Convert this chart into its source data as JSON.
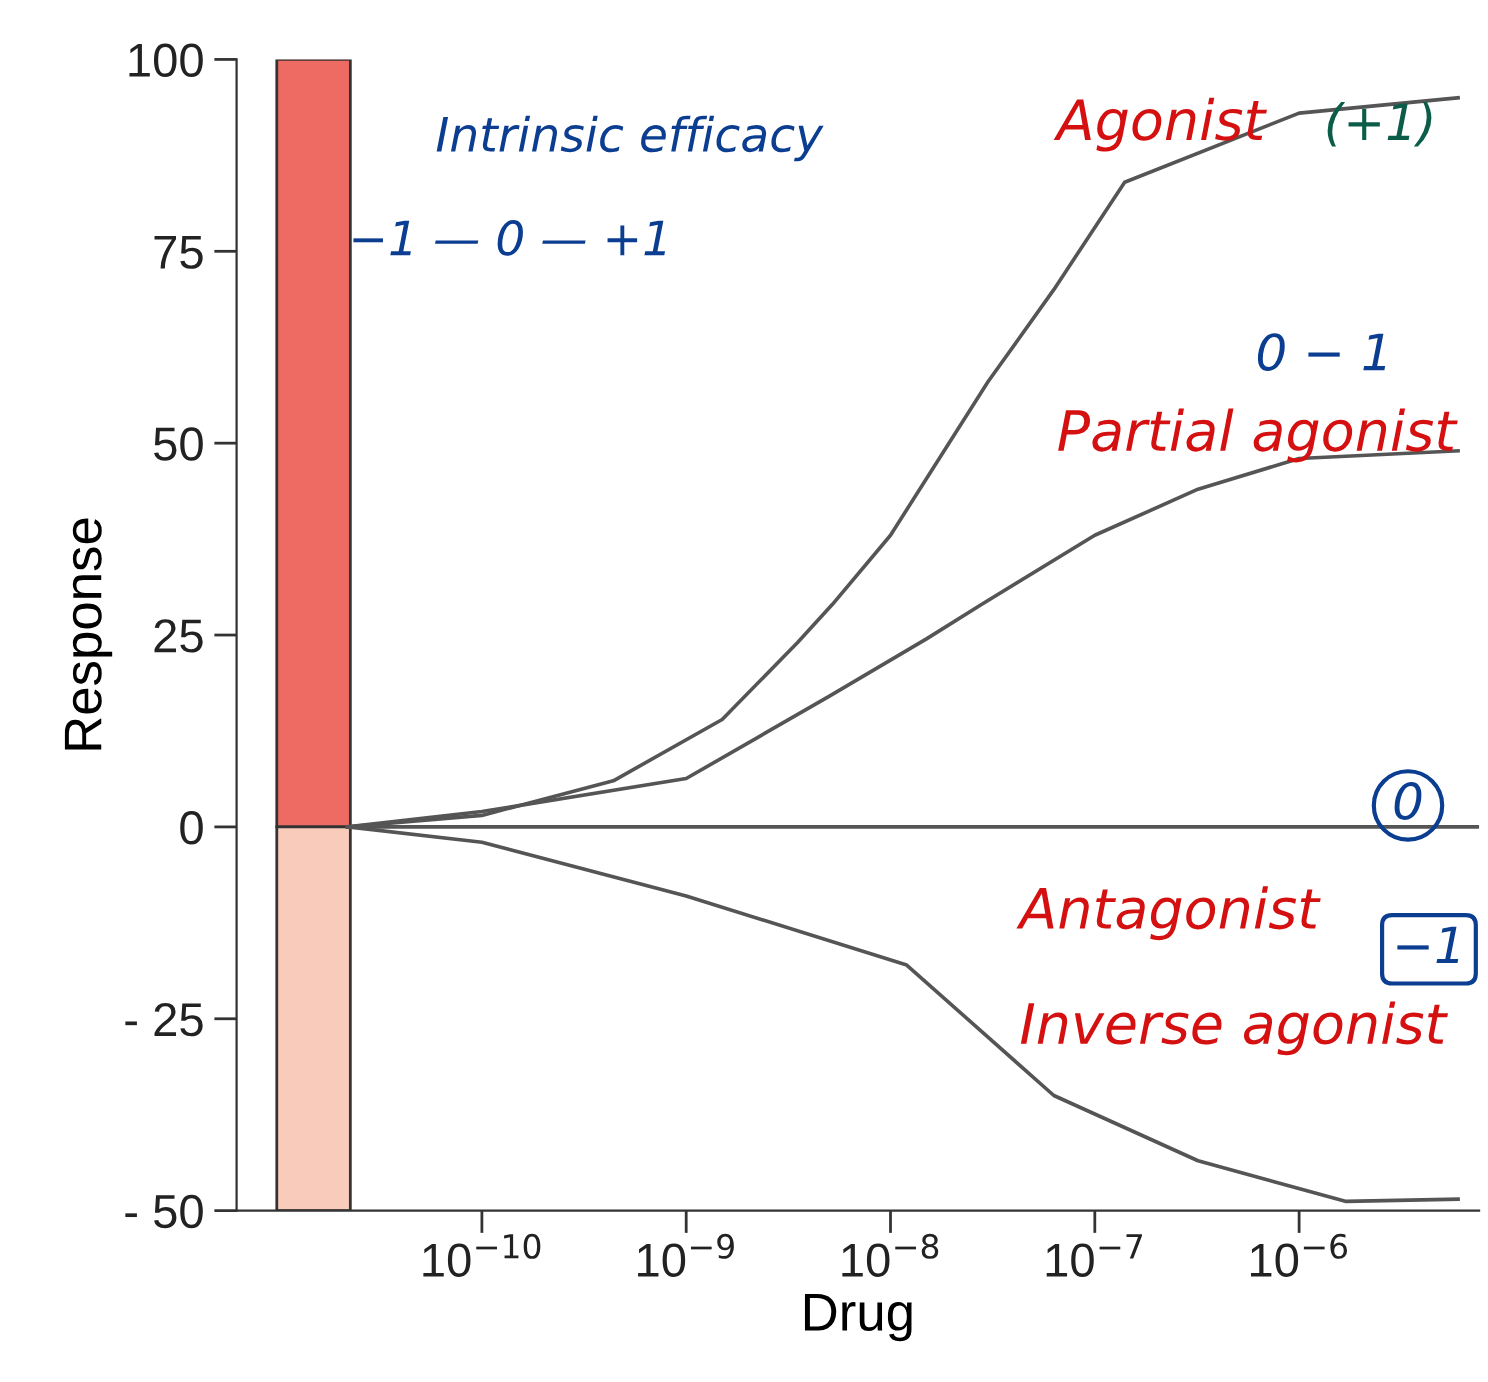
{
  "chart_data": {
    "type": "line",
    "xlabel": "Drug",
    "ylabel": "Response",
    "log": "x",
    "xlim": [
      6.3e-12,
      7.6e-06
    ],
    "xticks": [
      {
        "value": 1e-10,
        "label": "10$^{−10}$"
      },
      {
        "value": 1e-09,
        "label": "10$^{−9}$"
      },
      {
        "value": 1e-08,
        "label": "10$^{−8}$"
      },
      {
        "value": 1e-07,
        "label": "10$^{−7}$"
      },
      {
        "value": 1e-06,
        "label": "10$^{−6}$"
      }
    ],
    "ylim": [
      -50,
      100
    ],
    "yticks": [
      {
        "value": -50,
        "label": "- 50"
      },
      {
        "value": -25,
        "label": "- 25"
      },
      0,
      25,
      50,
      75,
      100
    ],
    "grid": false,
    "legend": false,
    "marker": "none",
    "line_style": "solid",
    "series": [
      {
        "type": "bar",
        "x": [
          1.5e-11,
          1.5e-11
        ],
        "values": [
          100,
          -50
        ],
        "colors": [
          "#ee6b63",
          "#f9cbbb"
        ]
      },
      {
        "name": "Agonist",
        "color": "#555555",
        "x": [
          2.2e-11,
          1e-10,
          4.4e-10,
          1.5e-09,
          3.5e-09,
          5.2e-09,
          1e-08,
          3e-08,
          6.3e-08,
          1.4e-07,
          1e-06,
          6e-06
        ],
        "values": [
          0,
          1.5,
          6,
          14,
          24,
          29,
          38,
          58,
          70,
          84,
          93,
          95
        ]
      },
      {
        "name": "Partial agonist",
        "color": "#555555",
        "x": [
          2.2e-11,
          1e-10,
          1e-09,
          5e-09,
          1.5e-08,
          2.8e-08,
          1e-07,
          3.2e-07,
          1e-06,
          6e-06
        ],
        "values": [
          0,
          2,
          6.3,
          17,
          24.5,
          29,
          38,
          44,
          48,
          49
        ]
      },
      {
        "name": "Antagonist",
        "color": "#555555",
        "x": [
          2.2e-11,
          7.6e-06
        ],
        "values": [
          0,
          0
        ]
      },
      {
        "name": "Inverse agonist",
        "color": "#555555",
        "x": [
          2.2e-11,
          1e-10,
          1e-09,
          1.2e-08,
          6.3e-08,
          3.2e-07,
          1.7e-06,
          6e-06
        ],
        "values": [
          0,
          -2,
          -9,
          -18,
          -35,
          -43.5,
          -48.8,
          -48.5
        ]
      }
    ],
    "annotations": [
      "Intrinsic efficacy",
      "−1 — 0 — +1",
      "(+1)",
      "0 − 1",
      "0",
      "−1"
    ]
  }
}
